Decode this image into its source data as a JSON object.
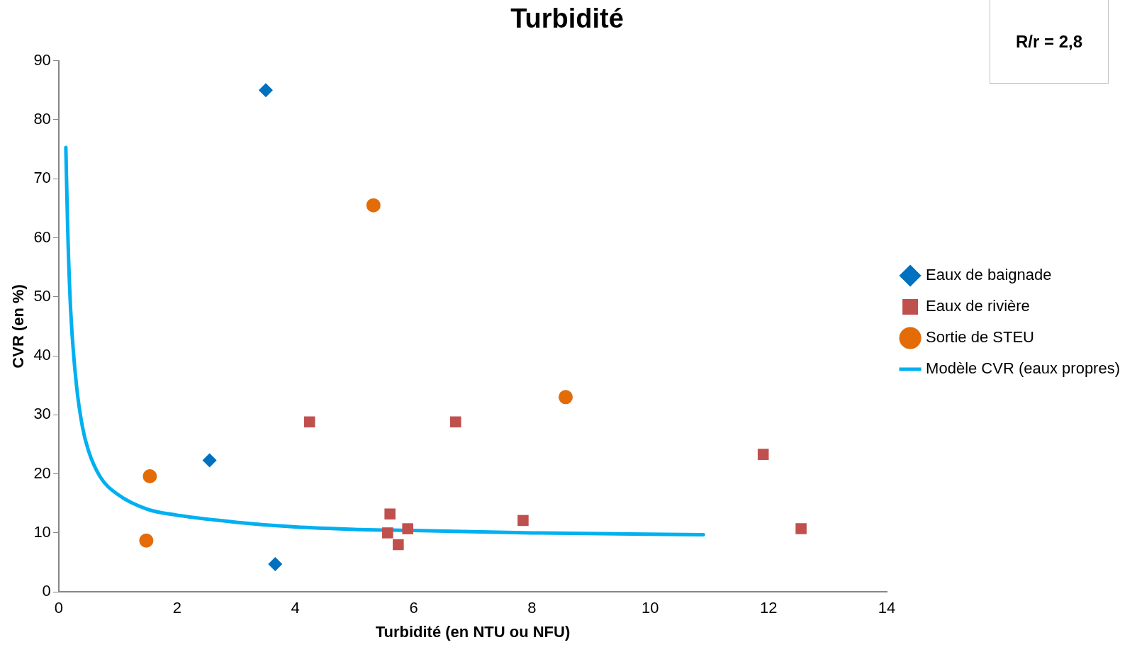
{
  "chart_data": {
    "type": "scatter",
    "title": "Turbidité",
    "xlabel": "Turbidité (en NTU ou NFU)",
    "ylabel": "CVR (en %)",
    "annotations": [
      "R/r = 2,8"
    ],
    "xlim": [
      0,
      14
    ],
    "xticks": [
      0,
      2,
      4,
      6,
      8,
      10,
      12,
      14
    ],
    "ylim": [
      0,
      90
    ],
    "yticks": [
      0,
      10,
      20,
      30,
      40,
      50,
      60,
      70,
      80,
      90
    ],
    "grid": false,
    "legend": "right",
    "series": [
      {
        "name": "Eaux de baignade",
        "color": "#0070c0",
        "marker": "diamond",
        "x": [
          3.5,
          2.55,
          3.66
        ],
        "values": [
          85,
          22.3,
          4.7
        ]
      },
      {
        "name": "Eaux de rivière",
        "color": "#c0504d",
        "marker": "square",
        "x": [
          4.24,
          6.71,
          5.6,
          5.56,
          5.9,
          5.74,
          7.85,
          11.91,
          12.55
        ],
        "values": [
          28.8,
          28.8,
          13.2,
          10,
          10.7,
          8,
          12.1,
          23.3,
          10.7
        ]
      },
      {
        "name": "Sortie de STEU",
        "color": "#e36c09",
        "marker": "circle",
        "x": [
          5.32,
          8.57,
          1.54,
          1.48
        ],
        "values": [
          65.5,
          33,
          19.6,
          8.7
        ]
      },
      {
        "name": "Modèle CVR (eaux propres)",
        "color": "#00b0f0",
        "type": "line",
        "marker": "none",
        "x": [
          0.12,
          0.15,
          0.2,
          0.3,
          0.4,
          0.5,
          0.7,
          1,
          1.5,
          2,
          3,
          4,
          5,
          6,
          8,
          10.9
        ],
        "values": [
          75.3,
          62,
          48,
          35,
          28,
          24,
          19.5,
          16.5,
          14,
          13,
          11.8,
          11,
          10.6,
          10.4,
          10,
          9.7
        ]
      }
    ]
  }
}
